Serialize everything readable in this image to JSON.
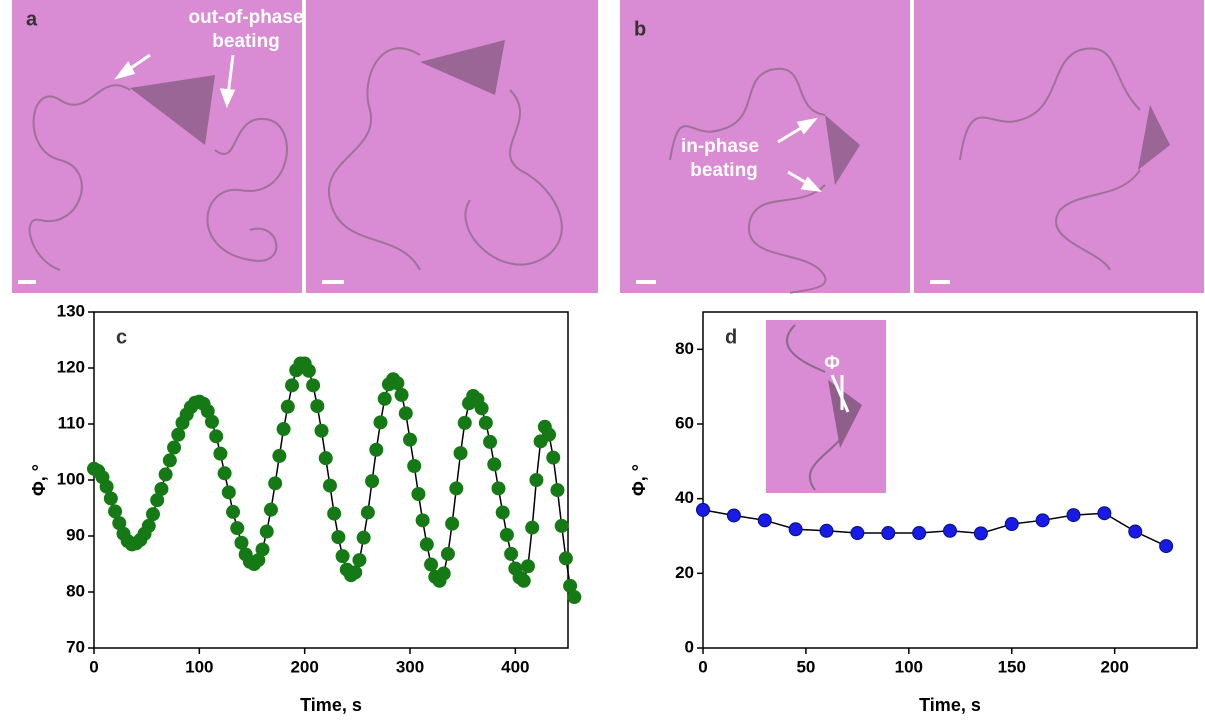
{
  "panels": {
    "a": {
      "label": "a",
      "annotation": [
        "out-of-phase",
        "beating"
      ]
    },
    "b": {
      "label": "b",
      "annotation": [
        "in-phase",
        "beating"
      ]
    }
  },
  "chart_data": [
    {
      "type": "line",
      "label": "c",
      "x_label": "Time, s",
      "y_label": "Φ, °",
      "x": [
        0,
        4,
        8,
        12,
        16,
        20,
        24,
        28,
        32,
        36,
        40,
        44,
        48,
        52,
        56,
        60,
        64,
        68,
        72,
        76,
        80,
        84,
        88,
        92,
        96,
        100,
        104,
        108,
        112,
        116,
        120,
        124,
        128,
        132,
        136,
        140,
        144,
        148,
        152,
        156,
        160,
        164,
        168,
        172,
        176,
        180,
        184,
        188,
        192,
        196,
        200,
        204,
        208,
        212,
        216,
        220,
        224,
        228,
        232,
        236,
        240,
        244,
        248,
        252,
        256,
        260,
        264,
        268,
        272,
        276,
        280,
        284,
        288,
        292,
        296,
        300,
        304,
        308,
        312,
        316,
        320,
        324,
        328,
        332,
        336,
        340,
        344,
        348,
        352,
        356,
        360,
        364,
        368,
        372,
        376,
        380,
        384,
        388,
        392,
        396,
        400,
        404,
        408,
        412,
        416,
        420,
        424,
        428,
        432,
        436,
        440,
        444,
        448,
        452,
        456
      ],
      "series": [
        {
          "color": "#157a15",
          "values": [
            102,
            101.6,
            100.5,
            98.8,
            96.7,
            94.4,
            92.3,
            90.4,
            89.1,
            88.5,
            88.7,
            89.3,
            90.4,
            91.8,
            93.9,
            96.4,
            98.4,
            101.0,
            103.5,
            105.8,
            108.1,
            110.2,
            111.7,
            113.0,
            113.8,
            114,
            113.6,
            112.3,
            110.4,
            107.8,
            104.7,
            101.2,
            97.8,
            94.3,
            91.4,
            88.8,
            86.7,
            85.4,
            85,
            85.7,
            87.6,
            90.8,
            94.7,
            99.4,
            104.3,
            109.1,
            113.1,
            116.9,
            119.6,
            120.8,
            120.8,
            119.5,
            116.9,
            113.2,
            108.8,
            103.9,
            99.0,
            94.0,
            89.8,
            86.4,
            84.0,
            83.0,
            83.5,
            85.7,
            89.7,
            94.2,
            99.8,
            105.4,
            110.3,
            114.5,
            117.1,
            118,
            117.3,
            115.2,
            111.9,
            107.2,
            102.5,
            97.5,
            92.8,
            88.5,
            84.9,
            82.7,
            82,
            83.3,
            86.8,
            92.2,
            98.5,
            104.8,
            110.2,
            113.7,
            115,
            114.4,
            112.8,
            110.2,
            106.8,
            102.8,
            98.5,
            94.2,
            90.2,
            86.8,
            84.2,
            82.6,
            82,
            84.6,
            91.5,
            100.0,
            106.9,
            109.5,
            108.1,
            104.0,
            98.2,
            91.8,
            86.0,
            81.1,
            79.1
          ]
        }
      ],
      "xlim": [
        0,
        450
      ],
      "ylim": [
        70,
        130
      ],
      "xticks": [
        0,
        100,
        200,
        300,
        400
      ],
      "yticks": [
        70,
        80,
        90,
        100,
        110,
        120,
        130
      ]
    },
    {
      "type": "line",
      "label": "d",
      "x_label": "Time, s",
      "y_label": "Φ, °",
      "inset_label": "Φ",
      "x": [
        0,
        15,
        30,
        45,
        60,
        75,
        90,
        105,
        120,
        135,
        150,
        165,
        180,
        195,
        210,
        225
      ],
      "series": [
        {
          "color": "#1a1ae6",
          "values": [
            37,
            35.5,
            34.2,
            31.8,
            31.4,
            30.8,
            30.8,
            30.8,
            31.4,
            30.7,
            33.2,
            34.2,
            35.6,
            36.1,
            31.2,
            27.3
          ]
        }
      ],
      "xlim": [
        0,
        240
      ],
      "ylim": [
        0,
        90
      ],
      "xticks": [
        0,
        50,
        100,
        150,
        200
      ],
      "yticks": [
        0,
        20,
        40,
        60,
        80
      ]
    }
  ]
}
